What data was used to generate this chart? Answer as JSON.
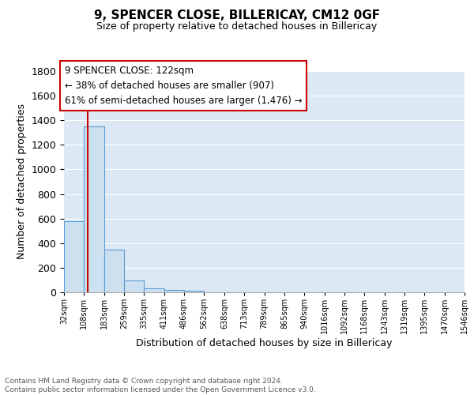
{
  "title_line1": "9, SPENCER CLOSE, BILLERICAY, CM12 0GF",
  "title_line2": "Size of property relative to detached houses in Billericay",
  "xlabel": "Distribution of detached houses by size in Billericay",
  "ylabel": "Number of detached properties",
  "bin_edges": [
    32,
    108,
    183,
    259,
    335,
    411,
    486,
    562,
    638,
    713,
    789,
    865,
    940,
    1016,
    1092,
    1168,
    1243,
    1319,
    1395,
    1470,
    1546
  ],
  "bin_counts": [
    580,
    1350,
    350,
    95,
    30,
    20,
    15,
    0,
    0,
    0,
    0,
    0,
    0,
    0,
    0,
    0,
    0,
    0,
    0,
    0
  ],
  "bar_facecolor": "#cce0f0",
  "bar_edgecolor": "#5b9bd5",
  "grid_color": "#ffffff",
  "background_color": "#dce9f5",
  "property_size": 122,
  "vline_color": "#cc0000",
  "ylim": [
    0,
    1800
  ],
  "yticks": [
    0,
    200,
    400,
    600,
    800,
    1000,
    1200,
    1400,
    1600,
    1800
  ],
  "annotation_text": "9 SPENCER CLOSE: 122sqm\n← 38% of detached houses are smaller (907)\n61% of semi-detached houses are larger (1,476) →",
  "annotation_box_color": "#ffffff",
  "annotation_border_color": "#cc0000",
  "footer_text": "Contains HM Land Registry data © Crown copyright and database right 2024.\nContains public sector information licensed under the Open Government Licence v3.0.",
  "tick_labels": [
    "32sqm",
    "108sqm",
    "183sqm",
    "259sqm",
    "335sqm",
    "411sqm",
    "486sqm",
    "562sqm",
    "638sqm",
    "713sqm",
    "789sqm",
    "865sqm",
    "940sqm",
    "1016sqm",
    "1092sqm",
    "1168sqm",
    "1243sqm",
    "1319sqm",
    "1395sqm",
    "1470sqm",
    "1546sqm"
  ]
}
